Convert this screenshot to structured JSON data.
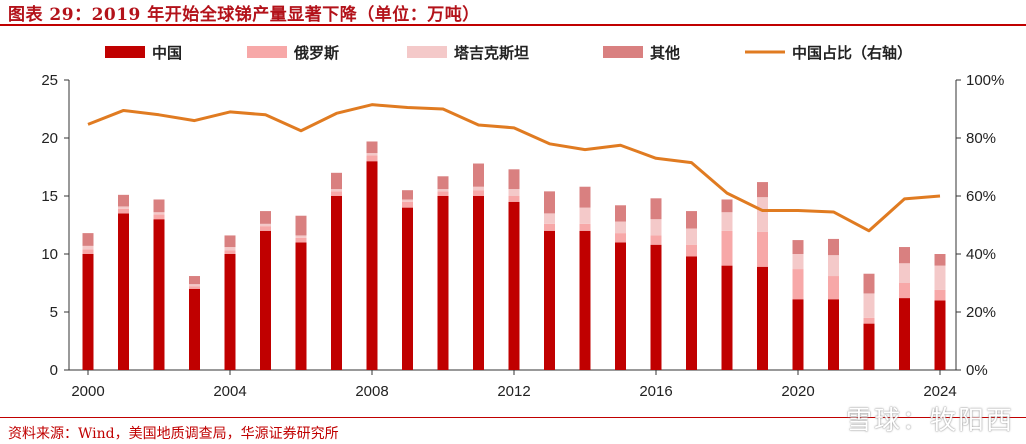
{
  "title": "图表 29：2019 年开始全球锑产量显著下降（单位：万吨）",
  "source": "资料来源：Wind，美国地质调查局，华源证券研究所",
  "watermark": "雪球：牧阳西",
  "colors": {
    "china": "#c00000",
    "russia": "#f7a8a8",
    "tajikistan": "#f4c9c9",
    "other": "#d98080",
    "share_line": "#e07b21",
    "accent": "#c00000"
  },
  "chart_data": {
    "type": "bar",
    "x": [
      2000,
      2001,
      2002,
      2003,
      2004,
      2005,
      2006,
      2007,
      2008,
      2009,
      2010,
      2011,
      2012,
      2013,
      2014,
      2015,
      2016,
      2017,
      2018,
      2019,
      2020,
      2021,
      2022,
      2023,
      2024
    ],
    "x_tick_labels": [
      "2000",
      "2004",
      "2008",
      "2012",
      "2016",
      "2020",
      "2024"
    ],
    "x_tick_values": [
      2000,
      2004,
      2008,
      2012,
      2016,
      2020,
      2024
    ],
    "stacked": true,
    "series": [
      {
        "name": "中国",
        "key": "china",
        "values": [
          10.0,
          13.5,
          13.0,
          7.0,
          10.0,
          12.0,
          11.0,
          15.0,
          18.0,
          14.0,
          15.0,
          15.0,
          14.5,
          12.0,
          12.0,
          11.0,
          10.8,
          9.8,
          9.0,
          8.9,
          6.1,
          6.1,
          4.0,
          6.2,
          6.0
        ]
      },
      {
        "name": "俄罗斯",
        "key": "russia",
        "values": [
          0.4,
          0.4,
          0.4,
          0.2,
          0.3,
          0.4,
          0.4,
          0.4,
          0.5,
          0.5,
          0.4,
          0.5,
          0.5,
          0.6,
          0.6,
          0.8,
          0.8,
          1.0,
          3.0,
          3.0,
          2.6,
          2.0,
          0.5,
          1.3,
          0.9
        ]
      },
      {
        "name": "塔吉克斯坦",
        "key": "tajikistan",
        "values": [
          0.3,
          0.2,
          0.2,
          0.2,
          0.3,
          0.2,
          0.2,
          0.2,
          0.2,
          0.2,
          0.2,
          0.3,
          0.6,
          0.9,
          1.4,
          1.0,
          1.4,
          1.4,
          1.6,
          3.0,
          1.3,
          1.8,
          2.1,
          1.7,
          2.1
        ]
      },
      {
        "name": "其他",
        "key": "other",
        "values": [
          1.1,
          1.0,
          1.1,
          0.7,
          1.0,
          1.1,
          1.7,
          1.4,
          1.0,
          0.8,
          1.1,
          2.0,
          1.7,
          1.9,
          1.8,
          1.4,
          1.8,
          1.5,
          1.1,
          1.3,
          1.2,
          1.4,
          1.7,
          1.4,
          1.0
        ]
      }
    ],
    "line_series": {
      "name": "中国占比（右轴）",
      "key": "share_line",
      "values": [
        84.7,
        89.5,
        88.0,
        86.0,
        89.0,
        88.0,
        82.5,
        88.5,
        91.5,
        90.5,
        90.0,
        84.5,
        83.5,
        78.0,
        76.0,
        77.5,
        73.0,
        71.5,
        61.0,
        55.0,
        55.0,
        54.5,
        48.0,
        59.0,
        60.0
      ]
    },
    "ylim": [
      0,
      25
    ],
    "y_ticks": [
      0,
      5,
      10,
      15,
      20,
      25
    ],
    "y2lim": [
      0,
      100
    ],
    "y2_ticks": [
      "0%",
      "20%",
      "40%",
      "60%",
      "80%",
      "100%"
    ],
    "y2_tick_values": [
      0,
      20,
      40,
      60,
      80,
      100
    ],
    "legend_position": "top",
    "grid": false
  }
}
